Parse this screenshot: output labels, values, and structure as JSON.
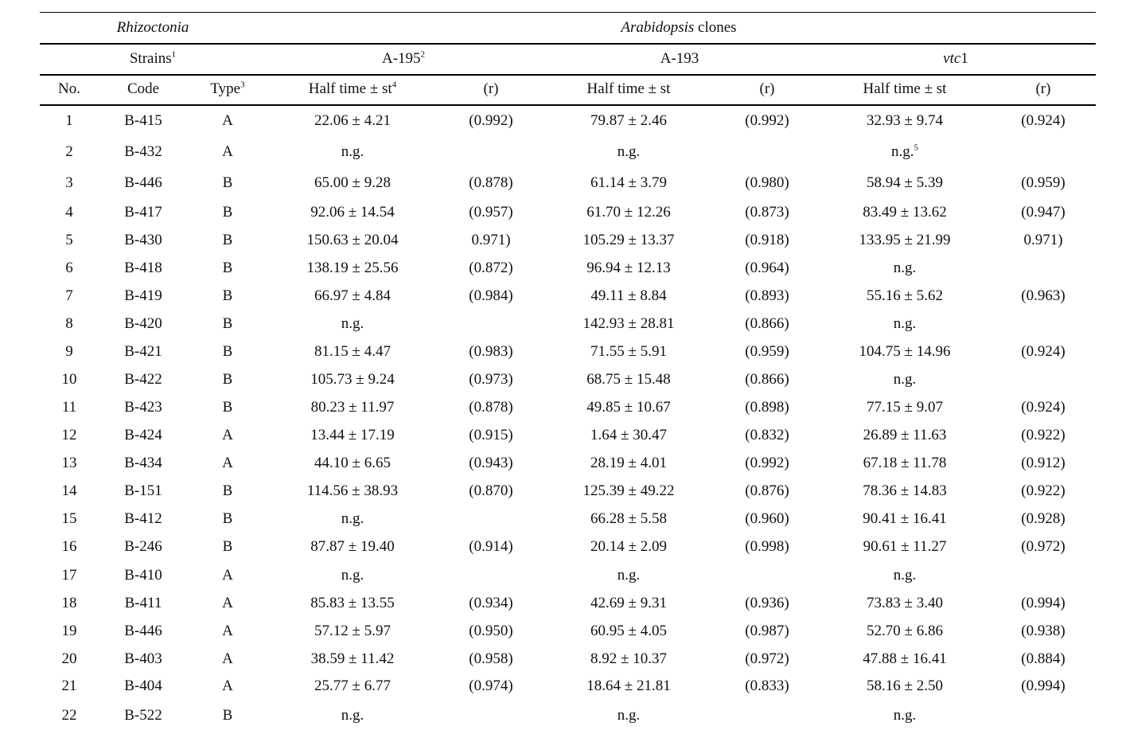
{
  "header": {
    "rhizoctonia": "Rhizoctonia",
    "arabidopsis": "Arabidopsis",
    "clones": " clones",
    "strains": "Strains",
    "strains_sup": "1",
    "a195": "A-195",
    "a195_sup": "2",
    "a193": "A-193",
    "vtc_italic": "vtc",
    "vtc_rest": "1",
    "col_no": "No.",
    "col_code": "Code",
    "col_type": "Type",
    "col_type_sup": "3",
    "col_half1": "Half time ± st",
    "col_half1_sup": "4",
    "col_r1": "(r)",
    "col_half2": "Half time ± st",
    "col_r2": "(r)",
    "col_half3": "Half time ± st",
    "col_r3": "(r)"
  },
  "rows": [
    {
      "no": "1",
      "code": "B-415",
      "type": "A",
      "h1": "22.06 ± 4.21",
      "r1": "(0.992)",
      "h2": "79.87 ± 2.46",
      "r2": "(0.992)",
      "h3": "32.93 ± 9.74",
      "r3": "(0.924)"
    },
    {
      "no": "2",
      "code": "B-432",
      "type": "A",
      "h1": "n.g.",
      "r1": "",
      "h2": "n.g.",
      "r2": "",
      "h3": "n.g.",
      "h3_sup": "5",
      "r3": ""
    },
    {
      "no": "3",
      "code": "B-446",
      "type": "B",
      "h1": "65.00 ± 9.28",
      "r1": "(0.878)",
      "h2": "61.14 ± 3.79",
      "r2": "(0.980)",
      "h3": "58.94 ± 5.39",
      "r3": "(0.959)"
    },
    {
      "no": "4",
      "code": "B-417",
      "type": "B",
      "h1": "92.06 ± 14.54",
      "r1": "(0.957)",
      "h2": "61.70 ± 12.26",
      "r2": "(0.873)",
      "h3": "83.49 ± 13.62",
      "r3": "(0.947)"
    },
    {
      "no": "5",
      "code": "B-430",
      "type": "B",
      "h1": "150.63 ± 20.04",
      "r1": "0.971)",
      "h2": "105.29 ± 13.37",
      "r2": "(0.918)",
      "h3": "133.95 ± 21.99",
      "r3": "0.971)"
    },
    {
      "no": "6",
      "code": "B-418",
      "type": "B",
      "h1": "138.19 ± 25.56",
      "r1": "(0.872)",
      "h2": "96.94 ± 12.13",
      "r2": "(0.964)",
      "h3": "n.g.",
      "r3": ""
    },
    {
      "no": "7",
      "code": "B-419",
      "type": "B",
      "h1": "66.97 ± 4.84",
      "r1": "(0.984)",
      "h2": "49.11 ± 8.84",
      "r2": "(0.893)",
      "h3": "55.16 ± 5.62",
      "r3": "(0.963)"
    },
    {
      "no": "8",
      "code": "B-420",
      "type": "B",
      "h1": "n.g.",
      "r1": "",
      "h2": "142.93 ± 28.81",
      "r2": "(0.866)",
      "h3": "n.g.",
      "r3": ""
    },
    {
      "no": "9",
      "code": "B-421",
      "type": "B",
      "h1": "81.15 ± 4.47",
      "r1": "(0.983)",
      "h2": "71.55 ± 5.91",
      "r2": "(0.959)",
      "h3": "104.75 ± 14.96",
      "r3": "(0.924)"
    },
    {
      "no": "10",
      "code": "B-422",
      "type": "B",
      "h1": "105.73 ± 9.24",
      "r1": "(0.973)",
      "h2": "68.75 ± 15.48",
      "r2": "(0.866)",
      "h3": "n.g.",
      "r3": ""
    },
    {
      "no": "11",
      "code": "B-423",
      "type": "B",
      "h1": "80.23 ± 11.97",
      "r1": "(0.878)",
      "h2": "49.85 ± 10.67",
      "r2": "(0.898)",
      "h3": "77.15 ± 9.07",
      "r3": "(0.924)"
    },
    {
      "no": "12",
      "code": "B-424",
      "type": "A",
      "h1": "13.44 ± 17.19",
      "r1": "(0.915)",
      "h2": "1.64 ± 30.47",
      "r2": "(0.832)",
      "h3": "26.89 ± 11.63",
      "r3": "(0.922)"
    },
    {
      "no": "13",
      "code": "B-434",
      "type": "A",
      "h1": "44.10 ± 6.65",
      "r1": "(0.943)",
      "h2": "28.19 ± 4.01",
      "r2": "(0.992)",
      "h3": "67.18 ± 11.78",
      "r3": "(0.912)"
    },
    {
      "no": "14",
      "code": "B-151",
      "type": "B",
      "h1": "114.56 ± 38.93",
      "r1": "(0.870)",
      "h2": "125.39 ± 49.22",
      "r2": "(0.876)",
      "h3": "78.36 ± 14.83",
      "r3": "(0.922)"
    },
    {
      "no": "15",
      "code": "B-412",
      "type": "B",
      "h1": "n.g.",
      "r1": "",
      "h2": "66.28 ± 5.58",
      "r2": "(0.960)",
      "h3": "90.41 ± 16.41",
      "r3": "(0.928)"
    },
    {
      "no": "16",
      "code": "B-246",
      "type": "B",
      "h1": "87.87 ± 19.40",
      "r1": "(0.914)",
      "h2": "20.14 ± 2.09",
      "r2": "(0.998)",
      "h3": "90.61 ± 11.27",
      "r3": "(0.972)"
    },
    {
      "no": "17",
      "code": "B-410",
      "type": "A",
      "h1": "n.g.",
      "r1": "",
      "h2": "n.g.",
      "r2": "",
      "h3": "n.g.",
      "r3": ""
    },
    {
      "no": "18",
      "code": "B-411",
      "type": "A",
      "h1": "85.83 ± 13.55",
      "r1": "(0.934)",
      "h2": "42.69 ± 9.31",
      "r2": "(0.936)",
      "h3": "73.83 ± 3.40",
      "r3": "(0.994)"
    },
    {
      "no": "19",
      "code": "B-446",
      "type": "A",
      "h1": "57.12 ± 5.97",
      "r1": "(0.950)",
      "h2": "60.95 ± 4.05",
      "r2": "(0.987)",
      "h3": "52.70 ± 6.86",
      "r3": "(0.938)"
    },
    {
      "no": "20",
      "code": "B-403",
      "type": "A",
      "h1": "38.59 ± 11.42",
      "r1": "(0.958)",
      "h2": "8.92 ± 10.37",
      "r2": "(0.972)",
      "h3": "47.88 ± 16.41",
      "r3": "(0.884)"
    },
    {
      "no": "21",
      "code": "B-404",
      "type": "A",
      "h1": "25.77 ± 6.77",
      "r1": "(0.974)",
      "h2": "18.64 ± 21.81",
      "r2": "(0.833)",
      "h3": "58.16 ± 2.50",
      "r3": "(0.994)"
    },
    {
      "no": "22",
      "code": "B-522",
      "type": "B",
      "h1": "n.g.",
      "r1": "",
      "h2": "n.g.",
      "r2": "",
      "h3": "n.g.",
      "r3": ""
    }
  ]
}
